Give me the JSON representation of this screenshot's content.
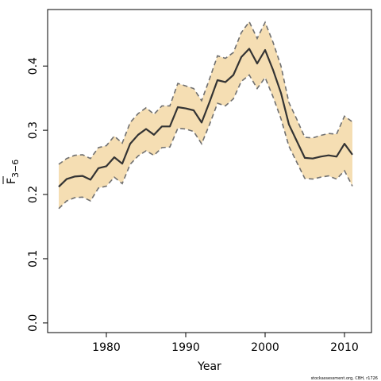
{
  "chart_data": {
    "type": "area",
    "title": "",
    "xlabel": "Year",
    "ylabel_main": "F",
    "ylabel_sub": "3−6",
    "xlim": [
      1972.6,
      2013.4
    ],
    "ylim": [
      -0.015,
      0.488
    ],
    "xticks": [
      1980,
      1990,
      2000,
      2010
    ],
    "xtick_labels": [
      "1980",
      "1990",
      "2000",
      "2010"
    ],
    "yticks": [
      0.0,
      0.1,
      0.2,
      0.3,
      0.4
    ],
    "ytick_labels": [
      "0.0",
      "0.1",
      "0.2",
      "0.3",
      "0.4"
    ],
    "grid": false,
    "colors": {
      "band": "#f5deb3",
      "line": "#333333",
      "bound": "#707070"
    },
    "x": [
      1974,
      1975,
      1976,
      1977,
      1978,
      1979,
      1980,
      1981,
      1982,
      1983,
      1984,
      1985,
      1986,
      1987,
      1988,
      1989,
      1990,
      1991,
      1992,
      1993,
      1994,
      1995,
      1996,
      1997,
      1998,
      1999,
      2000,
      2001,
      2002,
      2003,
      2004,
      2005,
      2006,
      2007,
      2008,
      2009,
      2010,
      2011
    ],
    "series": [
      {
        "values": [
          0.212,
          0.224,
          0.228,
          0.229,
          0.223,
          0.241,
          0.244,
          0.258,
          0.248,
          0.279,
          0.293,
          0.302,
          0.293,
          0.306,
          0.306,
          0.336,
          0.334,
          0.331,
          0.312,
          0.344,
          0.378,
          0.375,
          0.386,
          0.414,
          0.427,
          0.404,
          0.425,
          0.394,
          0.358,
          0.309,
          0.283,
          0.257,
          0.256,
          0.259,
          0.261,
          0.259,
          0.279,
          0.262
        ],
        "role": "estimate"
      },
      {
        "values": [
          0.247,
          0.256,
          0.261,
          0.262,
          0.256,
          0.273,
          0.276,
          0.291,
          0.28,
          0.312,
          0.326,
          0.335,
          0.325,
          0.338,
          0.338,
          0.373,
          0.369,
          0.365,
          0.346,
          0.38,
          0.416,
          0.412,
          0.421,
          0.452,
          0.469,
          0.443,
          0.468,
          0.437,
          0.4,
          0.343,
          0.317,
          0.289,
          0.288,
          0.292,
          0.295,
          0.294,
          0.322,
          0.313
        ],
        "role": "upper"
      },
      {
        "values": [
          0.178,
          0.19,
          0.195,
          0.196,
          0.19,
          0.21,
          0.213,
          0.227,
          0.217,
          0.247,
          0.26,
          0.268,
          0.261,
          0.273,
          0.274,
          0.303,
          0.302,
          0.298,
          0.279,
          0.309,
          0.342,
          0.338,
          0.349,
          0.376,
          0.386,
          0.365,
          0.382,
          0.352,
          0.318,
          0.275,
          0.25,
          0.225,
          0.224,
          0.227,
          0.229,
          0.224,
          0.237,
          0.213
        ],
        "role": "lower"
      }
    ]
  },
  "credit": "stockassessment.org, CBH, r1726"
}
